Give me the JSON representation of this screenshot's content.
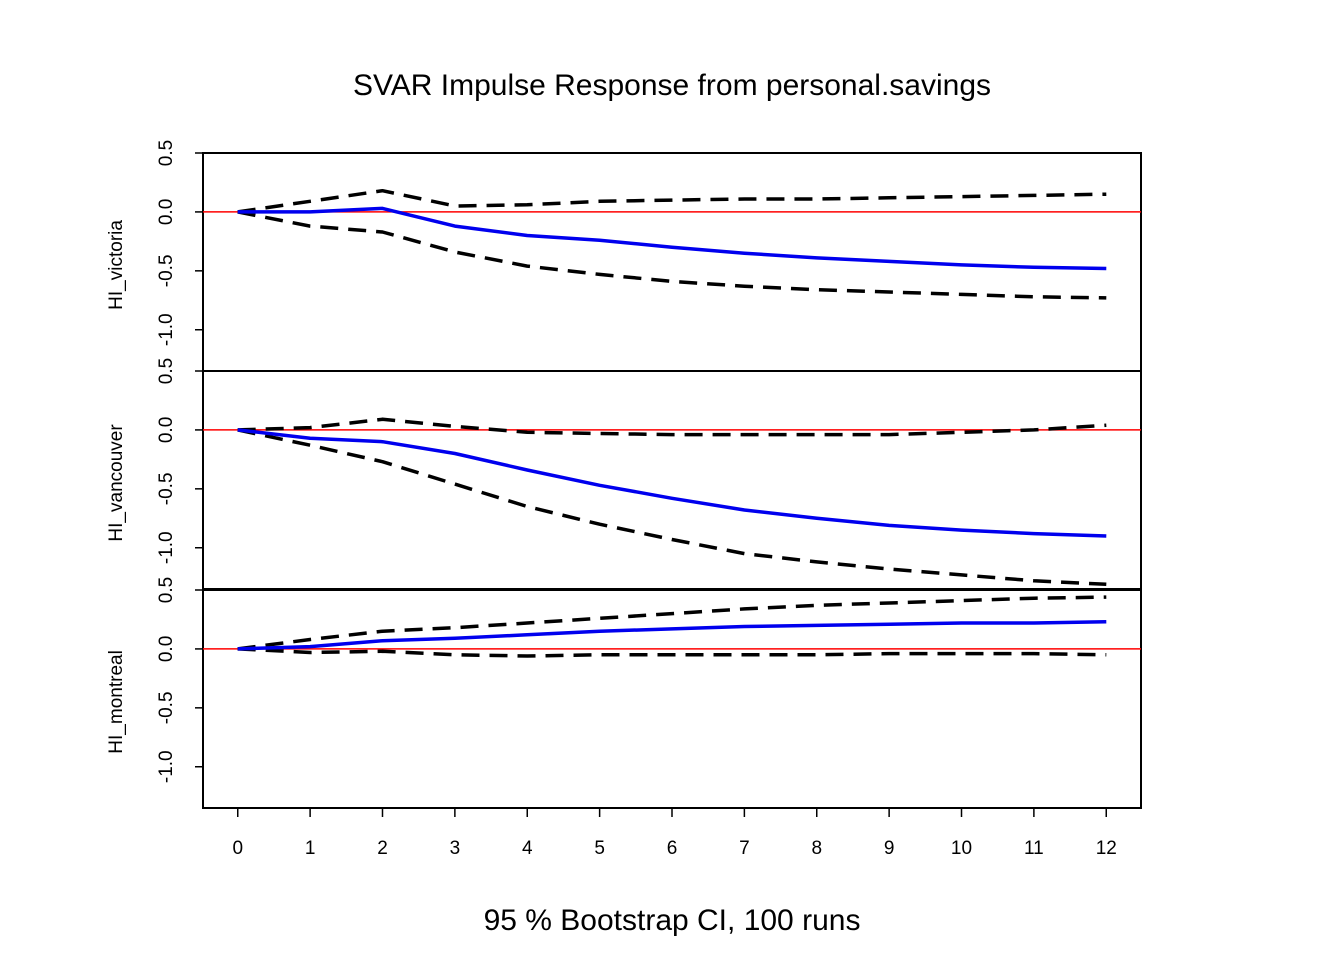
{
  "chart_data": {
    "type": "line",
    "title": "SVAR Impulse Response from personal.savings",
    "subtitle": "95 % Bootstrap CI,  100 runs",
    "x": [
      0,
      1,
      2,
      3,
      4,
      5,
      6,
      7,
      8,
      9,
      10,
      11,
      12
    ],
    "xticks": [
      "0",
      "1",
      "2",
      "3",
      "4",
      "5",
      "6",
      "7",
      "8",
      "9",
      "10",
      "11",
      "12"
    ],
    "ylim": [
      -1.35,
      0.5
    ],
    "yticks": [
      0.5,
      0.0,
      -0.5,
      -1.0
    ],
    "ytick_labels": [
      "0.5",
      "0.0",
      "-0.5",
      "-1.0"
    ],
    "zero_line_color": "#ff0000",
    "irf_color": "#0000ee",
    "ci_color": "#000000",
    "panels": [
      {
        "ylabel": "HI_victoria",
        "irf": [
          0.0,
          0.0,
          0.03,
          -0.12,
          -0.2,
          -0.24,
          -0.3,
          -0.35,
          -0.39,
          -0.42,
          -0.45,
          -0.47,
          -0.48
        ],
        "upper": [
          0.0,
          0.09,
          0.18,
          0.05,
          0.06,
          0.09,
          0.1,
          0.11,
          0.11,
          0.12,
          0.13,
          0.14,
          0.15
        ],
        "lower": [
          0.0,
          -0.12,
          -0.17,
          -0.34,
          -0.46,
          -0.53,
          -0.59,
          -0.63,
          -0.66,
          -0.68,
          -0.7,
          -0.72,
          -0.73
        ]
      },
      {
        "ylabel": "HI_vancouver",
        "irf": [
          0.0,
          -0.07,
          -0.1,
          -0.2,
          -0.34,
          -0.47,
          -0.58,
          -0.68,
          -0.75,
          -0.81,
          -0.85,
          -0.88,
          -0.9
        ],
        "upper": [
          0.0,
          0.02,
          0.09,
          0.03,
          -0.02,
          -0.03,
          -0.04,
          -0.04,
          -0.04,
          -0.04,
          -0.02,
          0.0,
          0.04
        ],
        "lower": [
          0.0,
          -0.13,
          -0.27,
          -0.46,
          -0.65,
          -0.8,
          -0.93,
          -1.05,
          -1.12,
          -1.18,
          -1.23,
          -1.28,
          -1.31
        ]
      },
      {
        "ylabel": "HI_montreal",
        "irf": [
          0.0,
          0.02,
          0.07,
          0.09,
          0.12,
          0.15,
          0.17,
          0.19,
          0.2,
          0.21,
          0.22,
          0.22,
          0.23
        ],
        "upper": [
          0.0,
          0.08,
          0.15,
          0.18,
          0.22,
          0.26,
          0.3,
          0.34,
          0.37,
          0.39,
          0.41,
          0.43,
          0.44
        ],
        "lower": [
          0.0,
          -0.03,
          -0.02,
          -0.05,
          -0.06,
          -0.05,
          -0.05,
          -0.05,
          -0.05,
          -0.04,
          -0.04,
          -0.04,
          -0.05
        ]
      }
    ]
  }
}
